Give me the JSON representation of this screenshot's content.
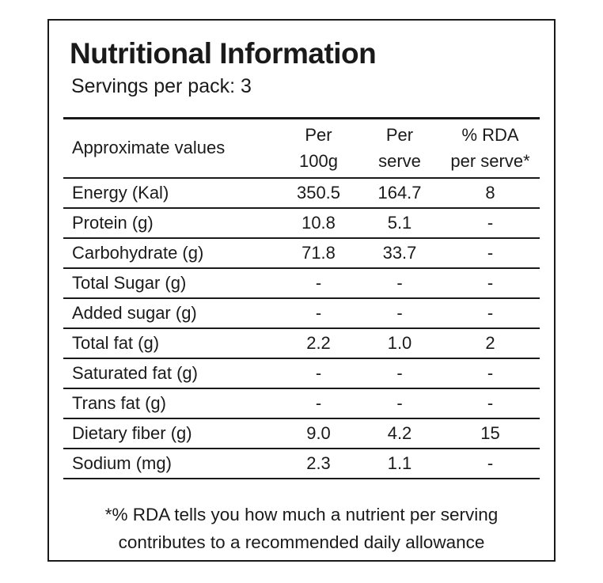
{
  "title": "Nutritional Information",
  "subtitle": "Servings per pack: 3",
  "table": {
    "headers": {
      "label": "Approximate values",
      "per100g": [
        "Per",
        "100g"
      ],
      "perServe": [
        "Per",
        "serve"
      ],
      "rda": [
        "% RDA",
        "per serve*"
      ]
    },
    "rows": [
      {
        "name": "Energy (Kal)",
        "per100g": "350.5",
        "perServe": "164.7",
        "rda": "8"
      },
      {
        "name": "Protein (g)",
        "per100g": "10.8",
        "perServe": "5.1",
        "rda": "-"
      },
      {
        "name": "Carbohydrate (g)",
        "per100g": "71.8",
        "perServe": "33.7",
        "rda": "-"
      },
      {
        "name": "Total Sugar (g)",
        "per100g": "-",
        "perServe": "-",
        "rda": "-"
      },
      {
        "name": "Added sugar (g)",
        "per100g": "-",
        "perServe": "-",
        "rda": "-"
      },
      {
        "name": "Total fat (g)",
        "per100g": "2.2",
        "perServe": "1.0",
        "rda": "2"
      },
      {
        "name": "Saturated fat (g)",
        "per100g": "-",
        "perServe": "-",
        "rda": "-"
      },
      {
        "name": "Trans fat (g)",
        "per100g": "-",
        "perServe": "-",
        "rda": "-"
      },
      {
        "name": "Dietary fiber (g)",
        "per100g": "9.0",
        "perServe": "4.2",
        "rda": "15"
      },
      {
        "name": "Sodium (mg)",
        "per100g": "2.3",
        "perServe": "1.1",
        "rda": "-"
      }
    ]
  },
  "footnote": [
    "*% RDA tells you how much a nutrient per serving",
    "contributes to a recommended daily allowance"
  ]
}
